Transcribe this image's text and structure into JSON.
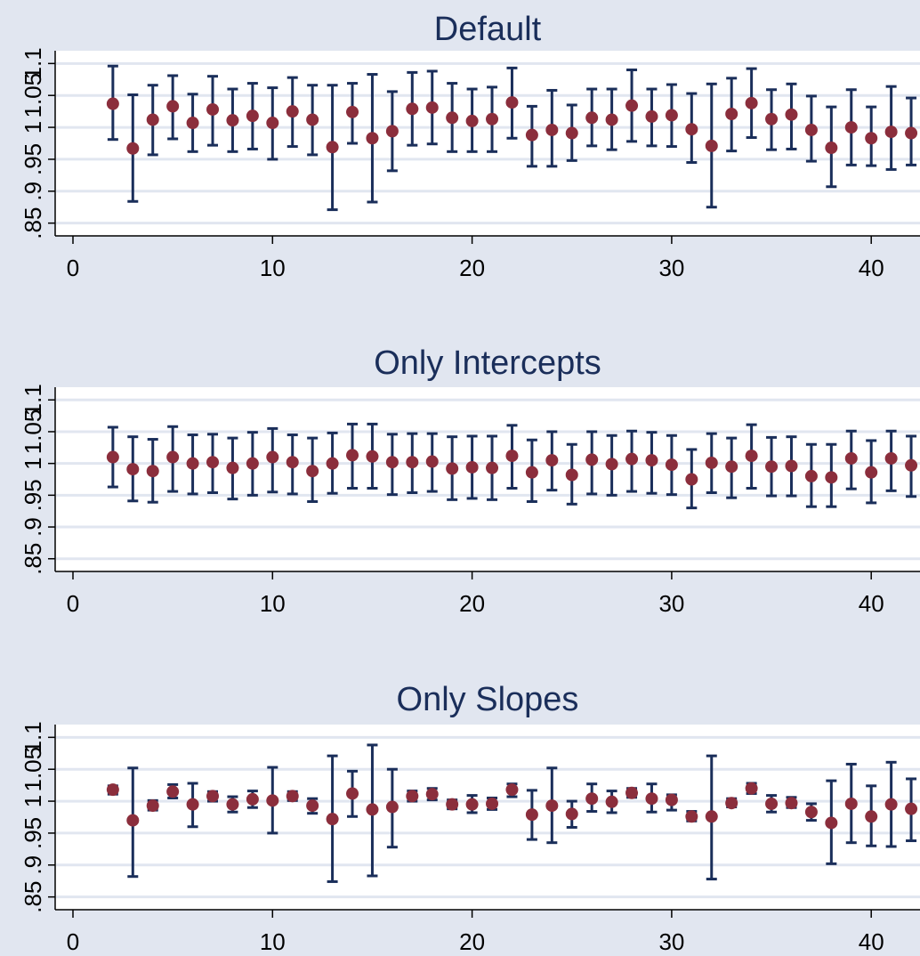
{
  "colors": {
    "background": "#e1e6f0",
    "plot_area": "#ffffff",
    "gridline": "#e1e6f0",
    "axis": "#000000",
    "error_bar": "#1a2e5a",
    "point": "#8b2e3c",
    "title": "#1a2e5a"
  },
  "chart_data": [
    {
      "type": "scatter",
      "title": "Default",
      "xlabel": "",
      "ylabel": "",
      "xlim": [
        0,
        42.8
      ],
      "ylim": [
        0.83,
        1.12
      ],
      "xticks": [
        0,
        10,
        20,
        30,
        40
      ],
      "yticks": [
        0.85,
        0.9,
        0.95,
        1,
        1.05,
        1.1
      ],
      "ytick_labels": [
        ".85",
        ".9",
        ".95",
        "1",
        "1.05",
        "1.1"
      ],
      "grid": true,
      "x": [
        2,
        3,
        4,
        5,
        6,
        7,
        8,
        9,
        10,
        11,
        12,
        13,
        14,
        15,
        16,
        17,
        18,
        19,
        20,
        21,
        22,
        23,
        24,
        25,
        26,
        27,
        28,
        29,
        30,
        31,
        32,
        33,
        34,
        35,
        36,
        37,
        38,
        39,
        40,
        41,
        42
      ],
      "y": [
        1.037,
        0.967,
        1.012,
        1.033,
        1.007,
        1.028,
        1.011,
        1.018,
        1.007,
        1.025,
        1.012,
        0.969,
        1.024,
        0.983,
        0.994,
        1.029,
        1.031,
        1.015,
        1.01,
        1.013,
        1.039,
        0.988,
        0.996,
        0.991,
        1.015,
        1.012,
        1.034,
        1.017,
        1.019,
        0.997,
        0.971,
        1.021,
        1.038,
        1.013,
        1.02,
        0.996,
        0.968,
        1.0,
        0.983,
        0.993,
        0.991
      ],
      "lower": [
        0.981,
        0.884,
        0.957,
        0.982,
        0.962,
        0.972,
        0.962,
        0.966,
        0.95,
        0.97,
        0.957,
        0.871,
        0.975,
        0.883,
        0.932,
        0.972,
        0.974,
        0.962,
        0.962,
        0.962,
        0.983,
        0.939,
        0.939,
        0.948,
        0.971,
        0.965,
        0.978,
        0.971,
        0.97,
        0.945,
        0.875,
        0.963,
        0.984,
        0.965,
        0.966,
        0.947,
        0.907,
        0.941,
        0.94,
        0.934,
        0.941
      ],
      "upper": [
        1.096,
        1.051,
        1.066,
        1.081,
        1.052,
        1.08,
        1.06,
        1.069,
        1.062,
        1.078,
        1.066,
        1.066,
        1.069,
        1.083,
        1.056,
        1.086,
        1.088,
        1.069,
        1.06,
        1.063,
        1.093,
        1.033,
        1.058,
        1.035,
        1.06,
        1.06,
        1.09,
        1.06,
        1.067,
        1.053,
        1.068,
        1.077,
        1.092,
        1.059,
        1.068,
        1.049,
        1.032,
        1.059,
        1.032,
        1.064,
        1.046
      ]
    },
    {
      "type": "scatter",
      "title": "Only Intercepts",
      "xlabel": "",
      "ylabel": "",
      "xlim": [
        0,
        42.8
      ],
      "ylim": [
        0.83,
        1.12
      ],
      "xticks": [
        0,
        10,
        20,
        30,
        40
      ],
      "yticks": [
        0.85,
        0.9,
        0.95,
        1,
        1.05,
        1.1
      ],
      "ytick_labels": [
        ".85",
        ".9",
        ".95",
        "1",
        "1.05",
        "1.1"
      ],
      "grid": true,
      "x": [
        2,
        3,
        4,
        5,
        6,
        7,
        8,
        9,
        10,
        11,
        12,
        13,
        14,
        15,
        16,
        17,
        18,
        19,
        20,
        21,
        22,
        23,
        24,
        25,
        26,
        27,
        28,
        29,
        30,
        31,
        32,
        33,
        34,
        35,
        36,
        37,
        38,
        39,
        40,
        41,
        42
      ],
      "y": [
        1.01,
        0.991,
        0.988,
        1.01,
        1.0,
        1.002,
        0.993,
        1.0,
        1.01,
        1.002,
        0.988,
        1.0,
        1.013,
        1.011,
        1.002,
        1.002,
        1.003,
        0.992,
        0.994,
        0.993,
        1.012,
        0.986,
        1.005,
        0.982,
        1.006,
        0.999,
        1.007,
        1.005,
        0.998,
        0.975,
        1.001,
        0.995,
        1.012,
        0.995,
        0.996,
        0.98,
        0.978,
        1.008,
        0.986,
        1.008,
        0.997
      ],
      "lower": [
        0.963,
        0.941,
        0.939,
        0.956,
        0.952,
        0.954,
        0.944,
        0.95,
        0.955,
        0.952,
        0.94,
        0.953,
        0.961,
        0.961,
        0.951,
        0.954,
        0.956,
        0.943,
        0.945,
        0.943,
        0.961,
        0.94,
        0.958,
        0.936,
        0.952,
        0.95,
        0.956,
        0.953,
        0.951,
        0.93,
        0.954,
        0.946,
        0.961,
        0.949,
        0.949,
        0.932,
        0.932,
        0.96,
        0.938,
        0.957,
        0.948
      ],
      "upper": [
        1.057,
        1.042,
        1.038,
        1.058,
        1.045,
        1.046,
        1.04,
        1.049,
        1.055,
        1.045,
        1.04,
        1.048,
        1.062,
        1.062,
        1.046,
        1.047,
        1.047,
        1.042,
        1.043,
        1.043,
        1.06,
        1.037,
        1.05,
        1.03,
        1.05,
        1.044,
        1.051,
        1.049,
        1.044,
        1.022,
        1.047,
        1.04,
        1.061,
        1.041,
        1.042,
        1.03,
        1.03,
        1.051,
        1.036,
        1.051,
        1.043
      ]
    },
    {
      "type": "scatter",
      "title": "Only Slopes",
      "xlabel": "",
      "ylabel": "",
      "xlim": [
        0,
        42.8
      ],
      "ylim": [
        0.83,
        1.12
      ],
      "xticks": [
        0,
        10,
        20,
        30,
        40
      ],
      "yticks": [
        0.85,
        0.9,
        0.95,
        1,
        1.05,
        1.1
      ],
      "ytick_labels": [
        ".85",
        ".9",
        ".95",
        "1",
        "1.05",
        "1.1"
      ],
      "grid": true,
      "x": [
        2,
        3,
        4,
        5,
        6,
        7,
        8,
        9,
        10,
        11,
        12,
        13,
        14,
        15,
        16,
        17,
        18,
        19,
        20,
        21,
        22,
        23,
        24,
        25,
        26,
        27,
        28,
        29,
        30,
        31,
        32,
        33,
        34,
        35,
        36,
        37,
        38,
        39,
        40,
        41,
        42
      ],
      "y": [
        1.018,
        0.97,
        0.993,
        1.015,
        0.995,
        1.008,
        0.995,
        1.003,
        1.001,
        1.008,
        0.993,
        0.972,
        1.012,
        0.987,
        0.991,
        1.008,
        1.011,
        0.995,
        0.995,
        0.996,
        1.018,
        0.979,
        0.993,
        0.98,
        1.004,
        0.999,
        1.013,
        1.004,
        1.002,
        0.976,
        0.976,
        0.997,
        1.02,
        0.996,
        0.997,
        0.983,
        0.966,
        0.996,
        0.976,
        0.995,
        0.988
      ],
      "lower": [
        1.011,
        0.882,
        0.986,
        1.005,
        0.96,
        1.0,
        0.983,
        0.99,
        0.95,
        1.001,
        0.981,
        0.874,
        0.976,
        0.883,
        0.928,
        1.0,
        1.002,
        0.988,
        0.982,
        0.987,
        1.007,
        0.94,
        0.935,
        0.959,
        0.984,
        0.982,
        1.006,
        0.983,
        0.986,
        0.969,
        0.878,
        0.991,
        1.012,
        0.983,
        0.99,
        0.97,
        0.902,
        0.935,
        0.93,
        0.929,
        0.938
      ],
      "upper": [
        1.024,
        1.052,
        1.001,
        1.026,
        1.028,
        1.015,
        1.007,
        1.016,
        1.053,
        1.015,
        1.004,
        1.071,
        1.047,
        1.088,
        1.05,
        1.016,
        1.02,
        1.002,
        1.009,
        1.005,
        1.027,
        1.017,
        1.052,
        1.0,
        1.027,
        1.016,
        1.02,
        1.027,
        1.01,
        0.984,
        1.071,
        1.004,
        1.028,
        1.009,
        1.006,
        0.996,
        1.032,
        1.058,
        1.024,
        1.061,
        1.035
      ]
    }
  ]
}
